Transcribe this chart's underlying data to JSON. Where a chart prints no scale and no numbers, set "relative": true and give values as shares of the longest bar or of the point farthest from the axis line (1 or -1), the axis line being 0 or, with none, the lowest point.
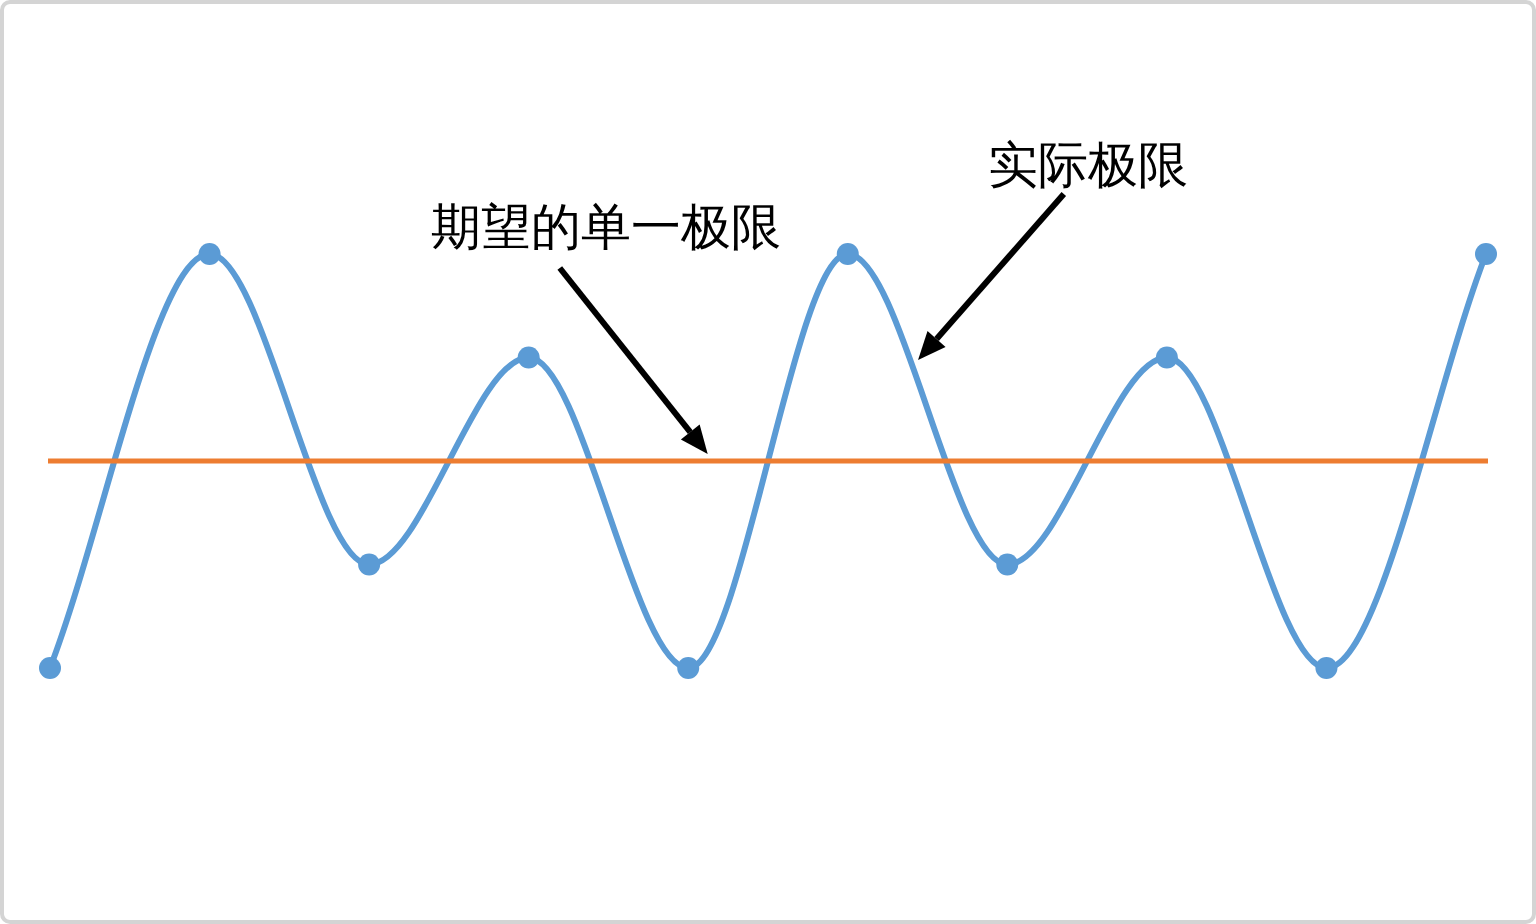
{
  "chart_data": {
    "type": "line",
    "relative": true,
    "categories": [
      null,
      null,
      null,
      null,
      null,
      null,
      null,
      null,
      null,
      null
    ],
    "series": [
      {
        "name": "实际极限",
        "color": "#5b9bd5",
        "values": [
          -1,
          1,
          -0.5,
          0.5,
          -1,
          1,
          -0.5,
          0.5,
          -1,
          1
        ]
      }
    ],
    "ref_lines": [
      {
        "axis": "y",
        "value": 0,
        "color": "#ed7d31",
        "line_style": "solid"
      }
    ],
    "annotations": [
      "期望的单一极限"
    ],
    "marker": "circle",
    "line_style": "solid",
    "tick_labels": false
  }
}
